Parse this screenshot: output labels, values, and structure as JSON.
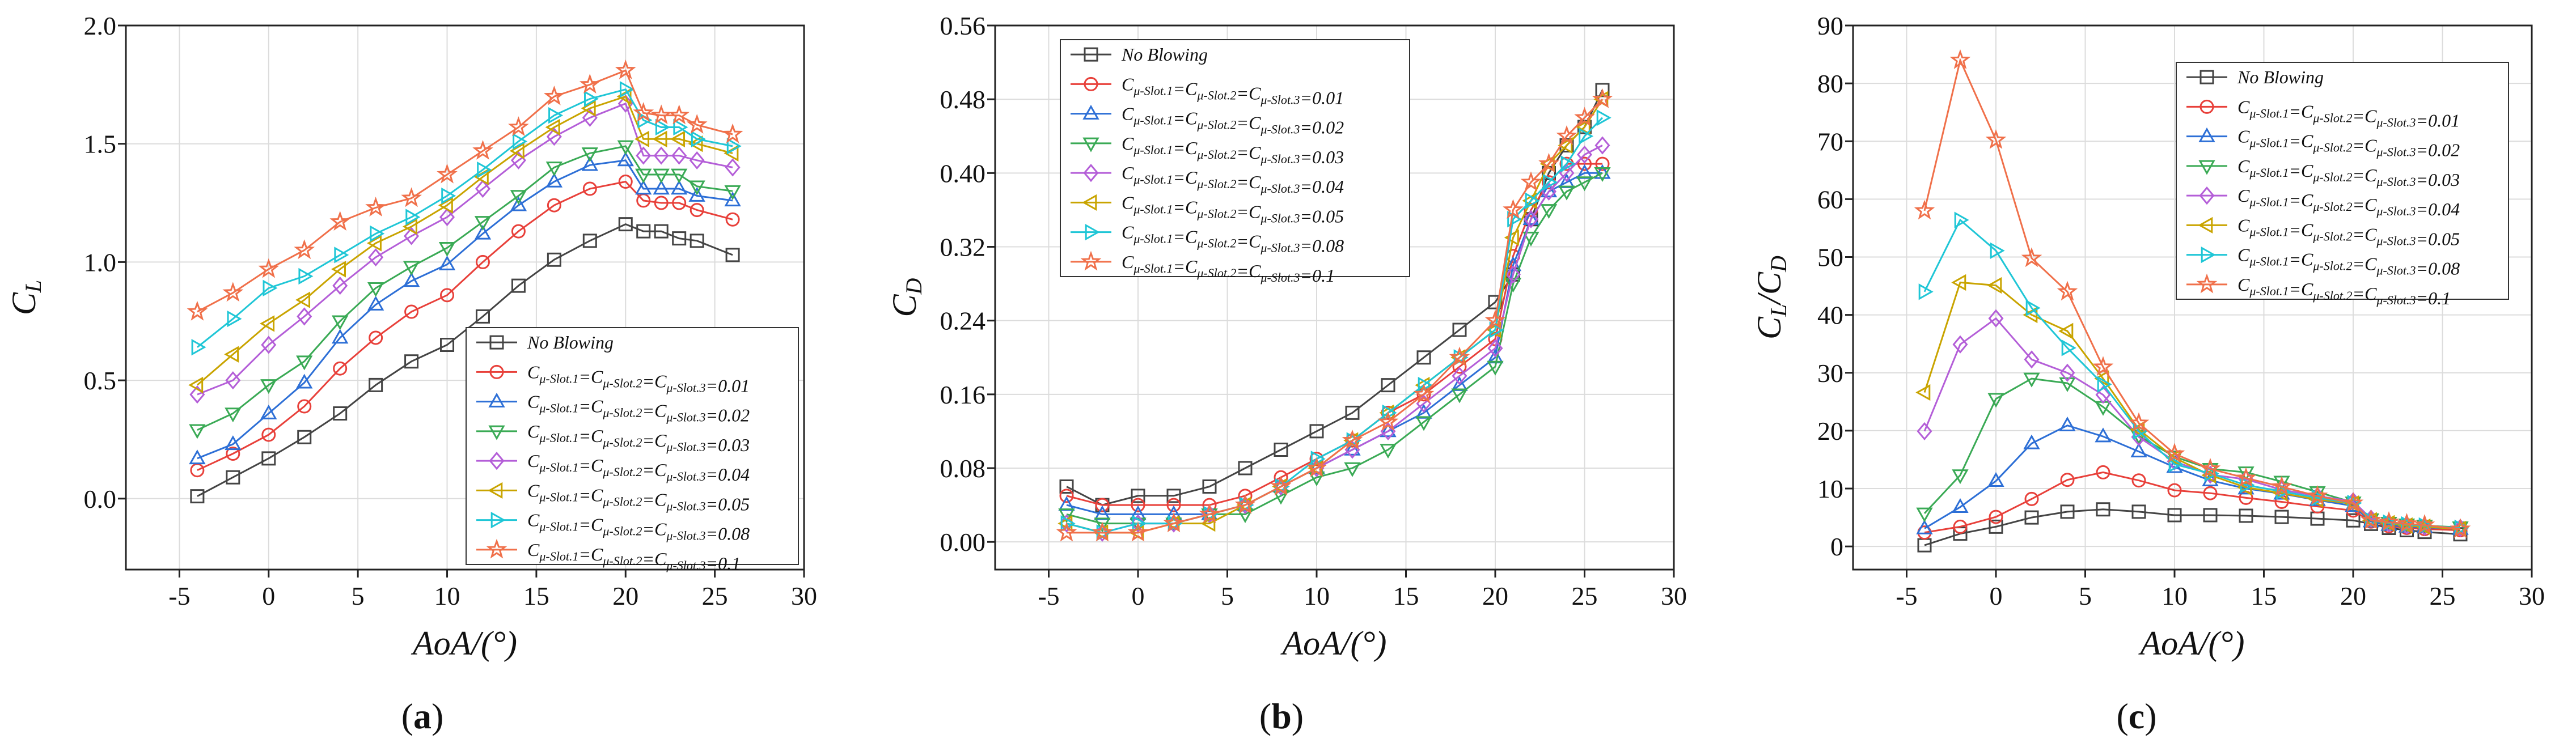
{
  "figure": {
    "captions": [
      "(a)",
      "(b)",
      "(c)"
    ],
    "caption_letters": [
      "a",
      "b",
      "c"
    ]
  },
  "series_styles": [
    {
      "name": "No Blowing",
      "color": "#444444",
      "marker": "square"
    },
    {
      "name": "Cμ-Slot.1=Cμ-Slot.2=Cμ-Slot.3=0.01",
      "color": "#e8403a",
      "marker": "circle"
    },
    {
      "name": "Cμ-Slot.1=Cμ-Slot.2=Cμ-Slot.3=0.02",
      "color": "#2d6fd6",
      "marker": "triangle-up"
    },
    {
      "name": "Cμ-Slot.1=Cμ-Slot.2=Cμ-Slot.3=0.03",
      "color": "#3aaa55",
      "marker": "triangle-down"
    },
    {
      "name": "Cμ-Slot.1=Cμ-Slot.2=Cμ-Slot.3=0.04",
      "color": "#b45ed8",
      "marker": "diamond"
    },
    {
      "name": "Cμ-Slot.1=Cμ-Slot.2=Cμ-Slot.3=0.05",
      "color": "#c9a400",
      "marker": "triangle-left"
    },
    {
      "name": "Cμ-Slot.1=Cμ-Slot.2=Cμ-Slot.3=0.08",
      "color": "#1fc6d6",
      "marker": "triangle-right"
    },
    {
      "name": "Cμ-Slot.1=Cμ-Slot.2=Cμ-Slot.3=0.1",
      "color": "#f0704a",
      "marker": "star"
    }
  ],
  "chart_data": [
    {
      "type": "line",
      "panel": "a",
      "caption": "(a)",
      "ylabel": "C_L",
      "xlabel": "AoA/(°)",
      "xlim": [
        -8,
        30
      ],
      "ylim": [
        -0.3,
        2.0
      ],
      "xticks": [
        -5,
        0,
        5,
        10,
        15,
        20,
        25,
        30
      ],
      "yticks": [
        0.0,
        0.5,
        1.0,
        1.5,
        2.0
      ],
      "ytick_labels": [
        "0.0",
        "0.5",
        "1.0",
        "1.5",
        "2.0"
      ],
      "xtick_labels": [
        "-5",
        "0",
        "5",
        "10",
        "15",
        "20",
        "25",
        "30"
      ],
      "legend_position": "lower-right",
      "x": [
        -4,
        -2,
        0,
        2,
        4,
        6,
        8,
        10,
        12,
        14,
        16,
        18,
        20,
        21,
        22,
        23,
        24,
        26
      ],
      "series": [
        {
          "name": "No Blowing",
          "values": [
            0.01,
            0.09,
            0.17,
            0.26,
            0.36,
            0.48,
            0.58,
            0.65,
            0.77,
            0.9,
            1.01,
            1.09,
            1.16,
            1.13,
            1.13,
            1.1,
            1.09,
            1.03
          ]
        },
        {
          "name": "Cμ-Slot.1=Cμ-Slot.2=Cμ-Slot.3=0.01",
          "values": [
            0.12,
            0.19,
            0.27,
            0.39,
            0.55,
            0.68,
            0.79,
            0.86,
            1.0,
            1.13,
            1.24,
            1.31,
            1.34,
            1.26,
            1.25,
            1.25,
            1.22,
            1.18
          ]
        },
        {
          "name": "Cμ-Slot.1=Cμ-Slot.2=Cμ-Slot.3=0.02",
          "values": [
            0.17,
            0.23,
            0.36,
            0.49,
            0.68,
            0.82,
            0.92,
            0.99,
            1.12,
            1.24,
            1.34,
            1.41,
            1.43,
            1.31,
            1.31,
            1.31,
            1.28,
            1.26
          ]
        },
        {
          "name": "Cμ-Slot.1=Cμ-Slot.2=Cμ-Slot.3=0.03",
          "values": [
            0.29,
            0.36,
            0.48,
            0.58,
            0.75,
            0.89,
            0.98,
            1.06,
            1.17,
            1.28,
            1.4,
            1.46,
            1.49,
            1.37,
            1.37,
            1.37,
            1.32,
            1.3
          ]
        },
        {
          "name": "Cμ-Slot.1=Cμ-Slot.2=Cμ-Slot.3=0.04",
          "values": [
            0.44,
            0.5,
            0.65,
            0.77,
            0.9,
            1.02,
            1.11,
            1.19,
            1.31,
            1.43,
            1.53,
            1.61,
            1.67,
            1.45,
            1.45,
            1.45,
            1.43,
            1.4
          ]
        },
        {
          "name": "Cμ-Slot.1=Cμ-Slot.2=Cμ-Slot.3=0.05",
          "values": [
            0.48,
            0.61,
            0.74,
            0.84,
            0.97,
            1.08,
            1.15,
            1.24,
            1.36,
            1.47,
            1.57,
            1.65,
            1.7,
            1.52,
            1.52,
            1.52,
            1.5,
            1.46
          ]
        },
        {
          "name": "Cμ-Slot.1=Cμ-Slot.2=Cμ-Slot.3=0.08",
          "values": [
            0.64,
            0.76,
            0.89,
            0.94,
            1.03,
            1.12,
            1.19,
            1.28,
            1.39,
            1.51,
            1.62,
            1.69,
            1.73,
            1.6,
            1.57,
            1.57,
            1.52,
            1.49
          ]
        },
        {
          "name": "Cμ-Slot.1=Cμ-Slot.2=Cμ-Slot.3=0.1",
          "values": [
            0.79,
            0.87,
            0.97,
            1.05,
            1.17,
            1.23,
            1.27,
            1.37,
            1.47,
            1.57,
            1.7,
            1.75,
            1.81,
            1.63,
            1.62,
            1.62,
            1.58,
            1.54
          ]
        }
      ]
    },
    {
      "type": "line",
      "panel": "b",
      "caption": "(b)",
      "ylabel": "C_D",
      "xlabel": "AoA/(°)",
      "xlim": [
        -8,
        30
      ],
      "ylim": [
        -0.03,
        0.56
      ],
      "xticks": [
        -5,
        0,
        5,
        10,
        15,
        20,
        25,
        30
      ],
      "yticks": [
        0.0,
        0.08,
        0.16,
        0.24,
        0.32,
        0.4,
        0.48,
        0.56
      ],
      "ytick_labels": [
        "0.00",
        "0.08",
        "0.16",
        "0.24",
        "0.32",
        "0.40",
        "0.48",
        "0.56"
      ],
      "xtick_labels": [
        "-5",
        "0",
        "5",
        "10",
        "15",
        "20",
        "25",
        "30"
      ],
      "legend_position": "top-left",
      "x": [
        -4,
        -2,
        0,
        2,
        4,
        6,
        8,
        10,
        12,
        14,
        16,
        18,
        20,
        21,
        22,
        23,
        24,
        25,
        26
      ],
      "series": [
        {
          "name": "No Blowing",
          "values": [
            0.06,
            0.04,
            0.05,
            0.05,
            0.06,
            0.08,
            0.1,
            0.12,
            0.14,
            0.17,
            0.2,
            0.23,
            0.26,
            0.29,
            0.35,
            0.4,
            0.43,
            0.45,
            0.49
          ]
        },
        {
          "name": "Cμ-Slot.1=Cμ-Slot.2=Cμ-Slot.3=0.01",
          "values": [
            0.05,
            0.04,
            0.04,
            0.04,
            0.04,
            0.05,
            0.07,
            0.09,
            0.11,
            0.14,
            0.16,
            0.19,
            0.22,
            0.31,
            0.36,
            0.39,
            0.41,
            0.41,
            0.41
          ]
        },
        {
          "name": "Cμ-Slot.1=Cμ-Slot.2=Cμ-Slot.3=0.02",
          "values": [
            0.04,
            0.03,
            0.03,
            0.03,
            0.03,
            0.04,
            0.06,
            0.08,
            0.1,
            0.12,
            0.14,
            0.17,
            0.2,
            0.3,
            0.35,
            0.38,
            0.39,
            0.4,
            0.4
          ]
        },
        {
          "name": "Cμ-Slot.1=Cμ-Slot.2=Cμ-Slot.3=0.03",
          "values": [
            0.03,
            0.02,
            0.02,
            0.02,
            0.03,
            0.03,
            0.05,
            0.07,
            0.08,
            0.1,
            0.13,
            0.16,
            0.19,
            0.28,
            0.33,
            0.36,
            0.38,
            0.39,
            0.4
          ]
        },
        {
          "name": "Cμ-Slot.1=Cμ-Slot.2=Cμ-Slot.3=0.04",
          "values": [
            0.02,
            0.01,
            0.02,
            0.02,
            0.03,
            0.04,
            0.06,
            0.08,
            0.1,
            0.12,
            0.15,
            0.18,
            0.21,
            0.29,
            0.35,
            0.38,
            0.4,
            0.42,
            0.43
          ]
        },
        {
          "name": "Cμ-Slot.1=Cμ-Slot.2=Cμ-Slot.3=0.05",
          "values": [
            0.02,
            0.01,
            0.01,
            0.02,
            0.02,
            0.04,
            0.06,
            0.08,
            0.11,
            0.14,
            0.17,
            0.2,
            0.23,
            0.33,
            0.37,
            0.41,
            0.43,
            0.45,
            0.48
          ]
        },
        {
          "name": "Cμ-Slot.1=Cμ-Slot.2=Cμ-Slot.3=0.08",
          "values": [
            0.02,
            0.01,
            0.02,
            0.02,
            0.03,
            0.04,
            0.06,
            0.09,
            0.11,
            0.14,
            0.17,
            0.2,
            0.23,
            0.35,
            0.37,
            0.39,
            0.41,
            0.44,
            0.46
          ]
        },
        {
          "name": "Cμ-Slot.1=Cμ-Slot.2=Cμ-Slot.3=0.1",
          "values": [
            0.01,
            0.01,
            0.01,
            0.02,
            0.03,
            0.04,
            0.06,
            0.08,
            0.11,
            0.13,
            0.16,
            0.2,
            0.24,
            0.36,
            0.39,
            0.41,
            0.44,
            0.46,
            0.48
          ]
        }
      ]
    },
    {
      "type": "line",
      "panel": "c",
      "caption": "(c)",
      "ylabel": "C_L/C_D",
      "xlabel": "AoA/(°)",
      "xlim": [
        -8,
        30
      ],
      "ylim": [
        -4,
        90
      ],
      "xticks": [
        -5,
        0,
        5,
        10,
        15,
        20,
        25,
        30
      ],
      "yticks": [
        0,
        10,
        20,
        30,
        40,
        50,
        60,
        70,
        80,
        90
      ],
      "ytick_labels": [
        "0",
        "10",
        "20",
        "30",
        "40",
        "50",
        "60",
        "70",
        "80",
        "90"
      ],
      "xtick_labels": [
        "-5",
        "0",
        "5",
        "10",
        "15",
        "20",
        "25",
        "30"
      ],
      "legend_position": "top-right",
      "x": [
        -4,
        -2,
        0,
        2,
        4,
        6,
        8,
        10,
        12,
        14,
        16,
        18,
        20,
        21,
        22,
        23,
        24,
        26
      ],
      "series": [
        {
          "name": "No Blowing",
          "values": [
            0.2,
            2.2,
            3.4,
            5.0,
            6.0,
            6.4,
            6.0,
            5.4,
            5.4,
            5.3,
            5.1,
            4.8,
            4.5,
            3.9,
            3.2,
            2.8,
            2.5,
            2.1
          ]
        },
        {
          "name": "Cμ-Slot.1=Cμ-Slot.2=Cμ-Slot.3=0.01",
          "values": [
            2.4,
            3.4,
            5.1,
            8.2,
            11.5,
            12.8,
            11.4,
            9.7,
            9.2,
            8.4,
            7.7,
            6.9,
            6.2,
            4.3,
            3.5,
            3.2,
            3.0,
            2.8
          ]
        },
        {
          "name": "Cμ-Slot.1=Cμ-Slot.2=Cμ-Slot.3=0.02",
          "values": [
            3.1,
            6.8,
            11.3,
            17.8,
            20.9,
            19.0,
            16.4,
            13.7,
            11.4,
            10.0,
            9.1,
            8.0,
            7.0,
            4.3,
            3.7,
            3.4,
            3.3,
            3.0
          ]
        },
        {
          "name": "Cμ-Slot.1=Cμ-Slot.2=Cμ-Slot.3=0.03",
          "values": [
            5.7,
            12.3,
            25.5,
            29.0,
            28.2,
            24.1,
            19.1,
            15.5,
            13.4,
            12.8,
            11.2,
            9.4,
            7.6,
            4.7,
            4.1,
            3.8,
            3.6,
            3.3
          ]
        },
        {
          "name": "Cμ-Slot.1=Cμ-Slot.2=Cμ-Slot.3=0.04",
          "values": [
            19.9,
            34.9,
            39.4,
            32.3,
            30.0,
            26.2,
            18.9,
            14.7,
            12.4,
            11.6,
            9.8,
            8.7,
            7.8,
            4.8,
            4.0,
            3.6,
            3.4,
            3.2
          ]
        },
        {
          "name": "Cμ-Slot.1=Cμ-Slot.2=Cμ-Slot.3=0.05",
          "values": [
            26.6,
            45.6,
            45.1,
            40.0,
            37.2,
            29.0,
            20.2,
            15.3,
            12.3,
            10.2,
            9.2,
            8.1,
            7.4,
            4.5,
            4.0,
            3.6,
            3.4,
            3.0
          ]
        },
        {
          "name": "Cμ-Slot.1=Cμ-Slot.2=Cμ-Slot.3=0.08",
          "values": [
            44.0,
            56.4,
            51.1,
            41.2,
            34.3,
            28.0,
            19.9,
            14.2,
            12.6,
            10.6,
            9.5,
            8.4,
            7.5,
            4.5,
            4.1,
            3.8,
            3.6,
            3.2
          ]
        },
        {
          "name": "Cμ-Slot.1=Cμ-Slot.2=Cμ-Slot.3=0.1",
          "values": [
            58.0,
            84.0,
            70.2,
            49.8,
            44.0,
            31.0,
            21.3,
            16.0,
            13.4,
            11.8,
            10.3,
            8.7,
            7.5,
            4.5,
            4.2,
            3.9,
            3.7,
            3.0
          ]
        }
      ]
    }
  ]
}
